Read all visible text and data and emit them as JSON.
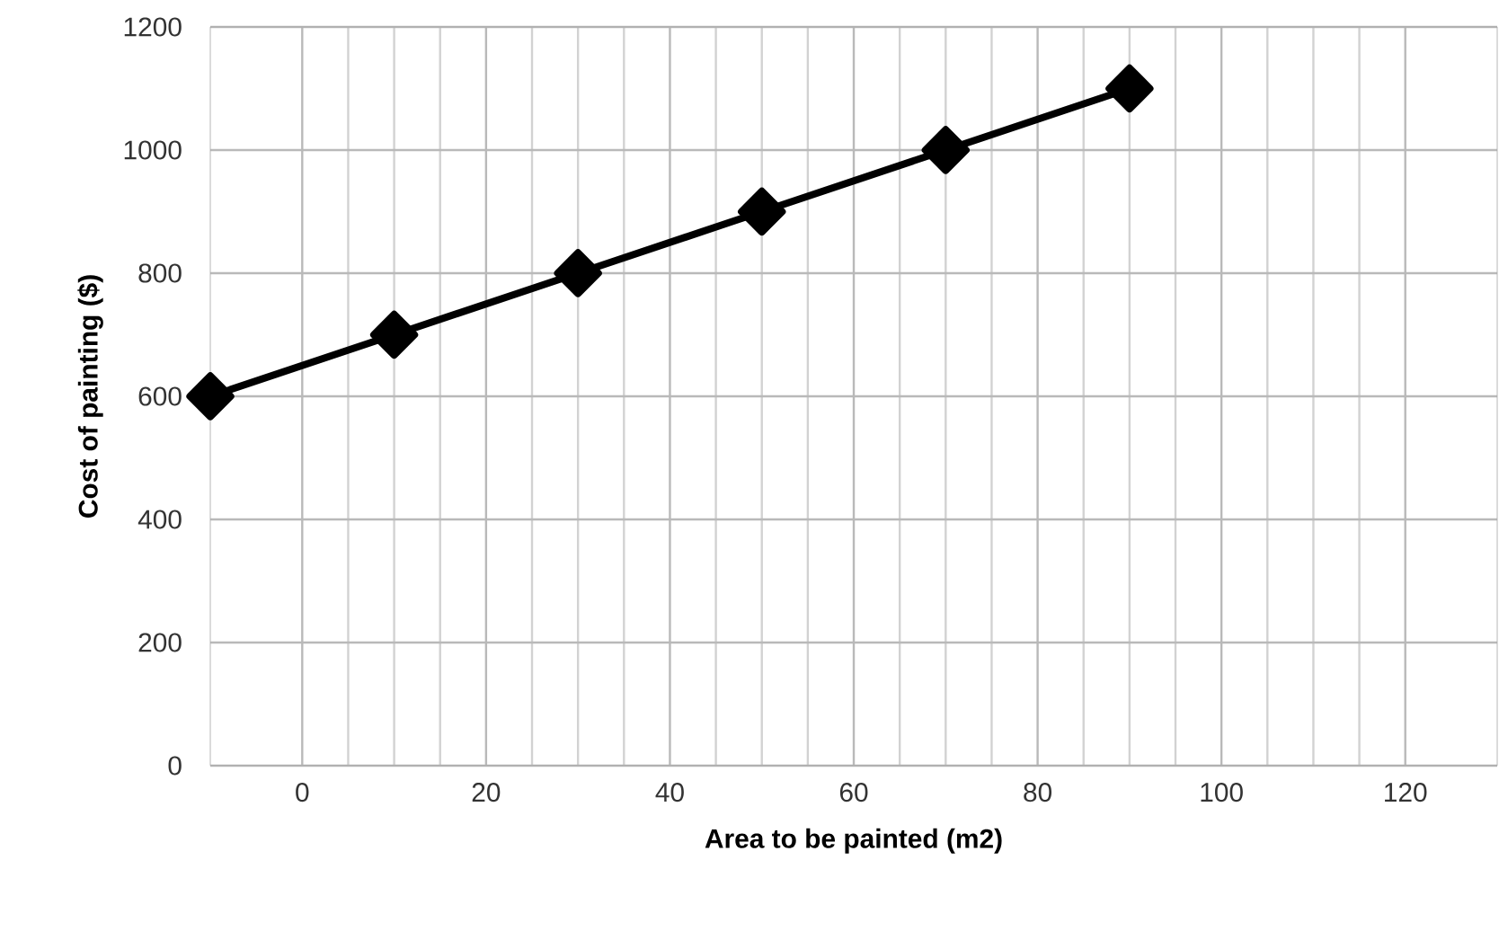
{
  "chart_data": {
    "type": "line",
    "xlabel": "Area to be painted (m2)",
    "ylabel": "Cost of painting ($)",
    "x": [
      -10,
      10,
      30,
      50,
      70,
      90
    ],
    "series": [
      {
        "color": "#000000",
        "values": [
          600,
          700,
          800,
          900,
          1000,
          1100
        ]
      }
    ],
    "xlim": [
      -10,
      130
    ],
    "xticks": [
      0,
      20,
      40,
      60,
      80,
      100,
      120
    ],
    "ylim": [
      0,
      1200
    ],
    "yticks": [
      0,
      200,
      400,
      600,
      800,
      1000,
      1200
    ],
    "grid": true,
    "marker": "diamond",
    "line_style": "solid"
  }
}
